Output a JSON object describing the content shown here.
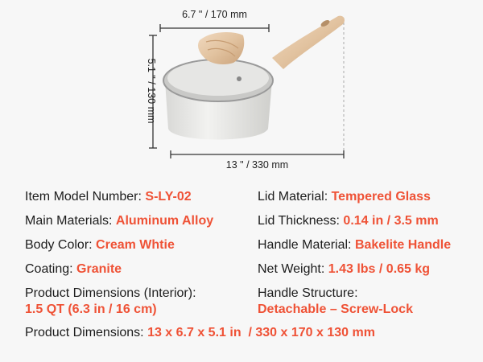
{
  "dimensions": {
    "width_label": "6.7 \" / 170 mm",
    "height_label": "5.1 \" / 130 mm",
    "length_label": "13 \" / 330 mm"
  },
  "colors": {
    "accent": "#ef5236",
    "text": "#1c1c1c",
    "background": "#f7f7f7"
  },
  "specs": {
    "left": [
      {
        "label": "Item Model Number: ",
        "value": "S-LY-02"
      },
      {
        "label": "Main Materials: ",
        "value": "Aluminum Alloy"
      },
      {
        "label": "Body Color: ",
        "value": "Cream Whtie"
      },
      {
        "label": "Coating: ",
        "value": "Granite"
      },
      {
        "label": "Product Dimensions (Interior):",
        "value": "1.5 QT (6.3 in / 16 cm)"
      }
    ],
    "right": [
      {
        "label": "Lid Material: ",
        "value": "Tempered Glass"
      },
      {
        "label": "Lid Thickness: ",
        "value": "0.14 in / 3.5 mm"
      },
      {
        "label": "Handle Material: ",
        "value": "Bakelite Handle"
      },
      {
        "label": "Net Weight: ",
        "value": "1.43 lbs / 0.65 kg"
      },
      {
        "label": "Handle Structure:",
        "value": "Detachable – Screw-Lock"
      }
    ],
    "full": {
      "label": "Product Dimensions: ",
      "value": "13 x 6.7 x 5.1 in  / 330 x 170 x 130 mm"
    }
  }
}
